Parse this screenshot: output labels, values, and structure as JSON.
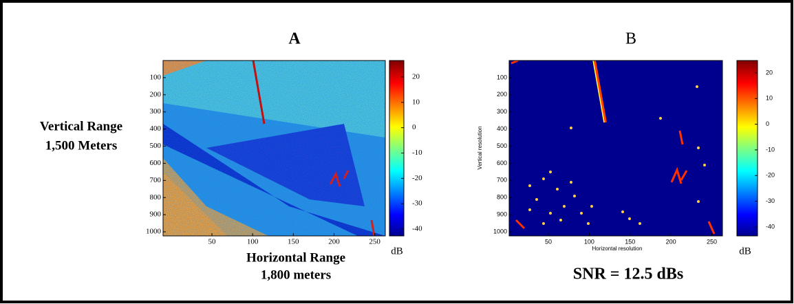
{
  "row_label": [
    "Vertical Range",
    "1,500 Meters"
  ],
  "panels": [
    {
      "title": "A",
      "xlabel": [
        "Horizontal Range",
        "1,800 meters"
      ],
      "xlim": [
        -10,
        263
      ],
      "ylim": [
        0,
        1024
      ],
      "xticks": [
        50,
        100,
        150,
        200,
        250
      ],
      "yticks": [
        100,
        200,
        300,
        400,
        500,
        600,
        700,
        800,
        900,
        1000
      ],
      "colorbar": {
        "lim": [
          -42.7,
          26.5
        ],
        "ticks": [
          20,
          10,
          0,
          -10,
          -20,
          -30,
          -40
        ],
        "unit": "dB"
      }
    },
    {
      "title": "B",
      "xlabel": [
        "Horizontal resolution"
      ],
      "ylabel": "Vertical resolution",
      "xlim": [
        2,
        263
      ],
      "ylim": [
        0,
        1024
      ],
      "xticks": [
        50,
        100,
        150,
        200,
        250
      ],
      "yticks": [
        100,
        200,
        300,
        400,
        500,
        600,
        700,
        800,
        900,
        1000
      ],
      "colorbar": {
        "lim": [
          -43.5,
          24.8
        ],
        "ticks": [
          20,
          10,
          0,
          -10,
          -20,
          -30,
          -40
        ],
        "unit": "dB"
      },
      "annotation": "SNR = 12.5 dBs"
    }
  ]
}
